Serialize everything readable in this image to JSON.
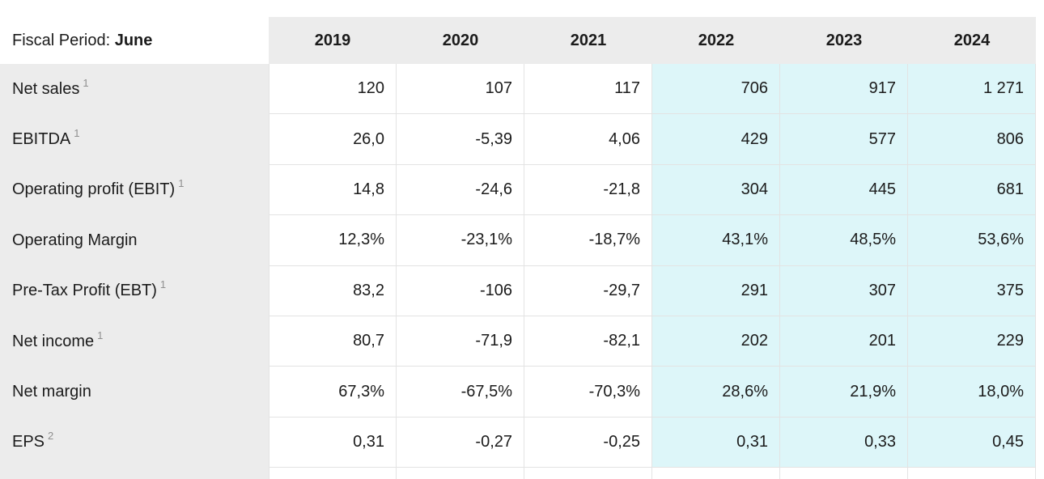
{
  "header": {
    "fiscal_period_label": "Fiscal Period:",
    "fiscal_period_value": "June"
  },
  "colors": {
    "highlight_bg": "#ddf6f9",
    "label_bg": "#ececec",
    "border": "#e3e3e3",
    "text": "#1b1b1b",
    "muted": "#7e7e7e"
  },
  "chart_data": {
    "type": "table",
    "title": "Fiscal Period: June",
    "columns": [
      "2019",
      "2020",
      "2021",
      "2022",
      "2023",
      "2024"
    ],
    "highlighted_columns": [
      "2022",
      "2023",
      "2024"
    ],
    "decimal_style": "comma",
    "rows": [
      {
        "label": "Net sales",
        "footnote": "1",
        "italic": false,
        "values": [
          "120",
          "107",
          "117",
          "706",
          "917",
          "1 271"
        ]
      },
      {
        "label": "EBITDA",
        "footnote": "1",
        "italic": false,
        "values": [
          "26,0",
          "-5,39",
          "4,06",
          "429",
          "577",
          "806"
        ]
      },
      {
        "label": "Operating profit (EBIT)",
        "footnote": "1",
        "italic": false,
        "values": [
          "14,8",
          "-24,6",
          "-21,8",
          "304",
          "445",
          "681"
        ]
      },
      {
        "label": "Operating Margin",
        "footnote": "",
        "italic": true,
        "values": [
          "12,3%",
          "-23,1%",
          "-18,7%",
          "43,1%",
          "48,5%",
          "53,6%"
        ]
      },
      {
        "label": "Pre-Tax Profit (EBT)",
        "footnote": "1",
        "italic": false,
        "values": [
          "83,2",
          "-106",
          "-29,7",
          "291",
          "307",
          "375"
        ]
      },
      {
        "label": "Net income",
        "footnote": "1",
        "italic": false,
        "values": [
          "80,7",
          "-71,9",
          "-82,1",
          "202",
          "201",
          "229"
        ]
      },
      {
        "label": "Net margin",
        "footnote": "",
        "italic": true,
        "values": [
          "67,3%",
          "-67,5%",
          "-70,3%",
          "28,6%",
          "21,9%",
          "18,0%"
        ]
      },
      {
        "label": "EPS",
        "footnote": "2",
        "italic": false,
        "values": [
          "0,31",
          "-0,27",
          "-0,25",
          "0,31",
          "0,33",
          "0,45"
        ]
      }
    ]
  }
}
